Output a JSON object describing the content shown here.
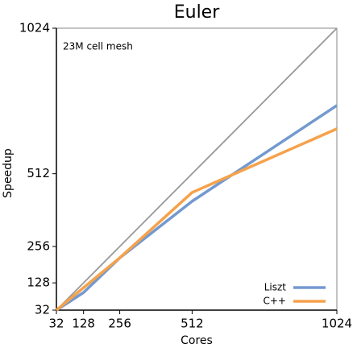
{
  "chart_data": {
    "type": "line",
    "title": "Euler",
    "annotation": "23M cell mesh",
    "x_label": "Cores",
    "y_label": "Speedup",
    "x": [
      32,
      128,
      256,
      512,
      1024
    ],
    "series": [
      {
        "color": "#999999",
        "values": [
          32,
          128,
          256,
          512,
          1024
        ]
      },
      {
        "name": "Liszt",
        "color": "#7399cf",
        "values": [
          32,
          94,
          216,
          415,
          752
        ]
      },
      {
        "name": "C++",
        "color": "#f5a24b",
        "values": [
          32,
          111,
          216,
          446,
          670
        ]
      }
    ],
    "xlim": [
      32,
      1024
    ],
    "ylim": [
      32,
      1024
    ],
    "xticks": [
      32,
      128,
      256,
      512,
      1024
    ],
    "yticks": [
      32,
      128,
      256,
      512,
      1024
    ],
    "legend": "lower right"
  }
}
